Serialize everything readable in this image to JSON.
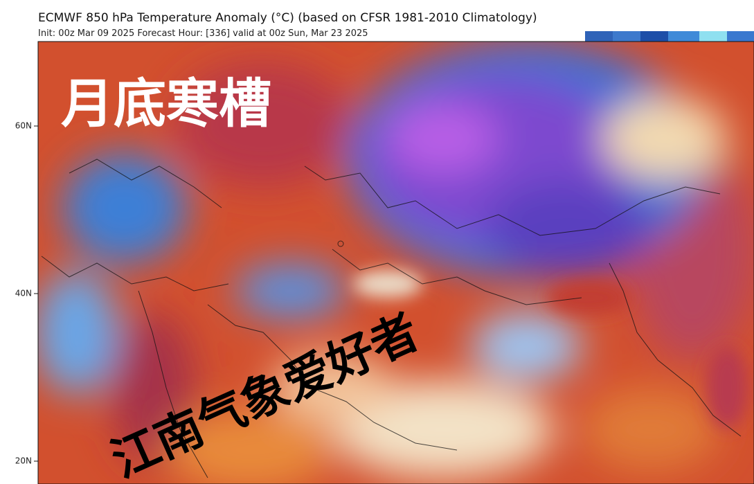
{
  "header": {
    "title": "ECMWF 850 hPa Temperature Anomaly (°C) (based on CFSR 1981-2010 Climatology)",
    "subtitle": "Init: 00z Mar 09 2025   Forecast Hour: [336]   valid at 00z Sun, Mar 23 2025"
  },
  "map": {
    "lat_labels": [
      "60N",
      "40N",
      "20N"
    ]
  },
  "overlay": {
    "headline": "月底寒槽",
    "watermark": "江南气象爱好者"
  }
}
